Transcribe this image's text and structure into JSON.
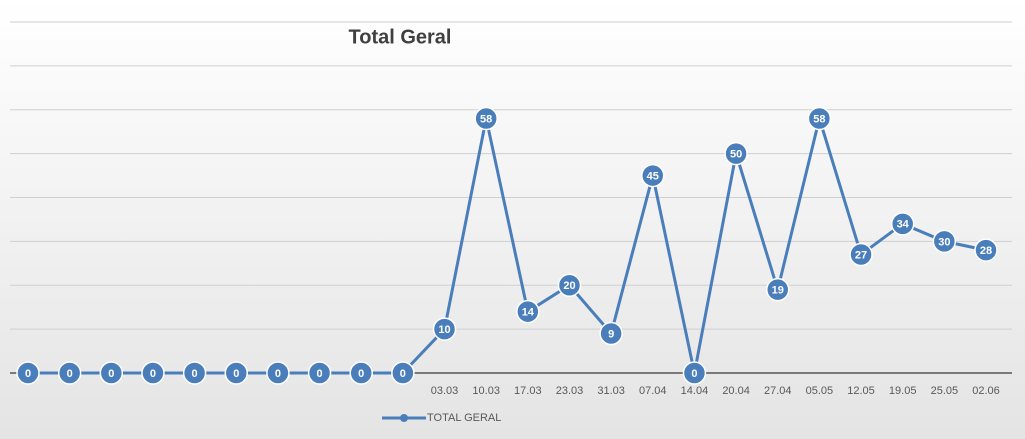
{
  "chart_data": {
    "type": "line",
    "title": "Total Geral",
    "categories": [
      null,
      null,
      null,
      null,
      null,
      null,
      null,
      null,
      null,
      null,
      "03.03",
      "10.03",
      "17.03",
      "23.03",
      "31.03",
      "07.04",
      "14.04",
      "20.04",
      "27.04",
      "05.05",
      "12.05",
      "19.05",
      "25.05",
      "02.06"
    ],
    "series": [
      {
        "name": "TOTAL GERAL",
        "color": "#4a7ebb",
        "values": [
          0,
          0,
          0,
          0,
          0,
          0,
          0,
          0,
          0,
          0,
          10,
          58,
          14,
          20,
          9,
          45,
          0,
          50,
          19,
          58,
          27,
          34,
          30,
          28
        ]
      }
    ],
    "ylim": [
      0,
      80
    ],
    "yticks": [
      0,
      10,
      20,
      30,
      40,
      50,
      60,
      70,
      80
    ],
    "grid": true,
    "legend": "bottom"
  }
}
